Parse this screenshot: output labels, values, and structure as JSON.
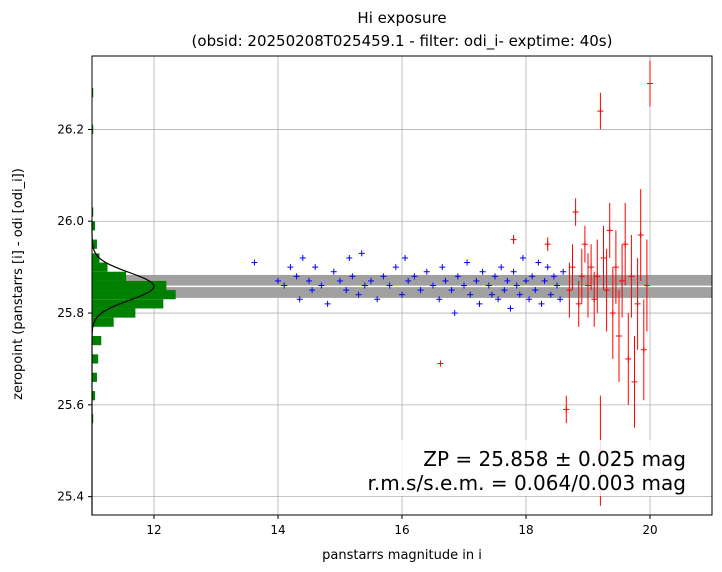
{
  "chart_data": {
    "type": "scatter",
    "title": "Hi exposure",
    "subtitle": "(obsid: 20250208T025459.1 - filter: odi_i- exptime: 40s)",
    "xlabel": "panstarrs magnitude in i",
    "ylabel": "zeropoint (panstarrs [i] - odi [odi_i])",
    "xlim": [
      11.0,
      21.0
    ],
    "ylim": [
      25.36,
      26.36
    ],
    "xticks": [
      12,
      14,
      16,
      18,
      20
    ],
    "yticks": [
      25.4,
      25.6,
      25.8,
      26.0,
      26.2
    ],
    "grid": true,
    "zeropoint": 25.858,
    "zeropoint_band": [
      25.833,
      25.883
    ],
    "annotation": {
      "line1": "ZP = 25.858 ± 0.025 mag",
      "line2": "r.m.s/s.e.m. = 0.064/0.003 mag"
    },
    "series": [
      {
        "color": "#0000ff",
        "marker": "plus",
        "points": [
          [
            13.62,
            25.91
          ],
          [
            14.0,
            25.87
          ],
          [
            14.1,
            25.86
          ],
          [
            14.2,
            25.9
          ],
          [
            14.3,
            25.88
          ],
          [
            14.35,
            25.83
          ],
          [
            14.4,
            25.92
          ],
          [
            14.5,
            25.87
          ],
          [
            14.55,
            25.85
          ],
          [
            14.6,
            25.9
          ],
          [
            14.7,
            25.86
          ],
          [
            14.8,
            25.82
          ],
          [
            14.9,
            25.89
          ],
          [
            15.0,
            25.87
          ],
          [
            15.1,
            25.85
          ],
          [
            15.15,
            25.92
          ],
          [
            15.2,
            25.88
          ],
          [
            15.3,
            25.84
          ],
          [
            15.35,
            25.93
          ],
          [
            15.4,
            25.86
          ],
          [
            15.5,
            25.87
          ],
          [
            15.6,
            25.83
          ],
          [
            15.7,
            25.88
          ],
          [
            15.8,
            25.86
          ],
          [
            15.9,
            25.9
          ],
          [
            16.0,
            25.84
          ],
          [
            16.05,
            25.92
          ],
          [
            16.1,
            25.87
          ],
          [
            16.2,
            25.88
          ],
          [
            16.3,
            25.85
          ],
          [
            16.4,
            25.89
          ],
          [
            16.5,
            25.86
          ],
          [
            16.6,
            25.83
          ],
          [
            16.65,
            25.9
          ],
          [
            16.7,
            25.87
          ],
          [
            16.8,
            25.85
          ],
          [
            16.85,
            25.8
          ],
          [
            16.9,
            25.88
          ],
          [
            17.0,
            25.86
          ],
          [
            17.05,
            25.91
          ],
          [
            17.1,
            25.84
          ],
          [
            17.2,
            25.87
          ],
          [
            17.25,
            25.82
          ],
          [
            17.3,
            25.89
          ],
          [
            17.4,
            25.86
          ],
          [
            17.45,
            25.84
          ],
          [
            17.5,
            25.88
          ],
          [
            17.55,
            25.83
          ],
          [
            17.6,
            25.9
          ],
          [
            17.65,
            25.85
          ],
          [
            17.7,
            25.87
          ],
          [
            17.75,
            25.81
          ],
          [
            17.8,
            25.89
          ],
          [
            17.85,
            25.86
          ],
          [
            17.9,
            25.84
          ],
          [
            17.95,
            25.92
          ],
          [
            18.0,
            25.87
          ],
          [
            18.05,
            25.83
          ],
          [
            18.1,
            25.88
          ],
          [
            18.15,
            25.85
          ],
          [
            18.2,
            25.91
          ],
          [
            18.25,
            25.82
          ],
          [
            18.3,
            25.87
          ],
          [
            18.35,
            25.9
          ],
          [
            18.4,
            25.84
          ],
          [
            18.45,
            25.88
          ],
          [
            18.5,
            25.86
          ],
          [
            18.55,
            25.83
          ],
          [
            18.6,
            25.89
          ]
        ]
      },
      {
        "color": "#ff0000",
        "marker": "plus-errorbar",
        "points": [
          [
            16.62,
            25.69,
            0.0
          ],
          [
            17.8,
            25.96,
            0.01
          ],
          [
            18.35,
            25.95,
            0.015
          ],
          [
            18.65,
            25.59,
            0.03
          ],
          [
            18.7,
            25.85,
            0.06
          ],
          [
            18.75,
            25.9,
            0.05
          ],
          [
            18.8,
            26.02,
            0.03
          ],
          [
            18.85,
            25.82,
            0.05
          ],
          [
            18.9,
            25.88,
            0.06
          ],
          [
            18.95,
            25.95,
            0.04
          ],
          [
            19.0,
            25.86,
            0.07
          ],
          [
            19.05,
            25.9,
            0.05
          ],
          [
            19.1,
            25.83,
            0.06
          ],
          [
            19.15,
            25.88,
            0.08
          ],
          [
            19.2,
            26.24,
            0.04
          ],
          [
            19.2,
            25.5,
            0.12
          ],
          [
            19.25,
            25.92,
            0.07
          ],
          [
            19.3,
            25.85,
            0.09
          ],
          [
            19.35,
            25.98,
            0.06
          ],
          [
            19.4,
            25.8,
            0.1
          ],
          [
            19.45,
            25.9,
            0.08
          ],
          [
            19.5,
            25.75,
            0.1
          ],
          [
            19.55,
            25.87,
            0.08
          ],
          [
            19.6,
            25.95,
            0.09
          ],
          [
            19.65,
            25.7,
            0.1
          ],
          [
            19.7,
            25.88,
            0.09
          ],
          [
            19.75,
            25.65,
            0.1
          ],
          [
            19.8,
            25.82,
            0.1
          ],
          [
            19.85,
            25.97,
            0.1
          ],
          [
            19.9,
            25.72,
            0.11
          ],
          [
            19.95,
            25.86,
            0.1
          ],
          [
            20.0,
            26.3,
            0.05
          ]
        ]
      }
    ],
    "histogram": {
      "bins": [
        [
          25.57,
          0.02
        ],
        [
          25.62,
          0.05
        ],
        [
          25.66,
          0.08
        ],
        [
          25.7,
          0.1
        ],
        [
          25.74,
          0.15
        ],
        [
          25.78,
          0.35
        ],
        [
          25.8,
          0.7
        ],
        [
          25.82,
          1.15
        ],
        [
          25.84,
          1.35
        ],
        [
          25.86,
          1.2
        ],
        [
          25.88,
          0.55
        ],
        [
          25.9,
          0.25
        ],
        [
          25.92,
          0.12
        ],
        [
          25.95,
          0.08
        ],
        [
          25.99,
          0.05
        ],
        [
          26.02,
          0.02
        ],
        [
          26.2,
          0.02
        ],
        [
          26.28,
          0.02
        ]
      ],
      "fit_peak": 1.0,
      "fit_sigma": 0.03
    }
  }
}
